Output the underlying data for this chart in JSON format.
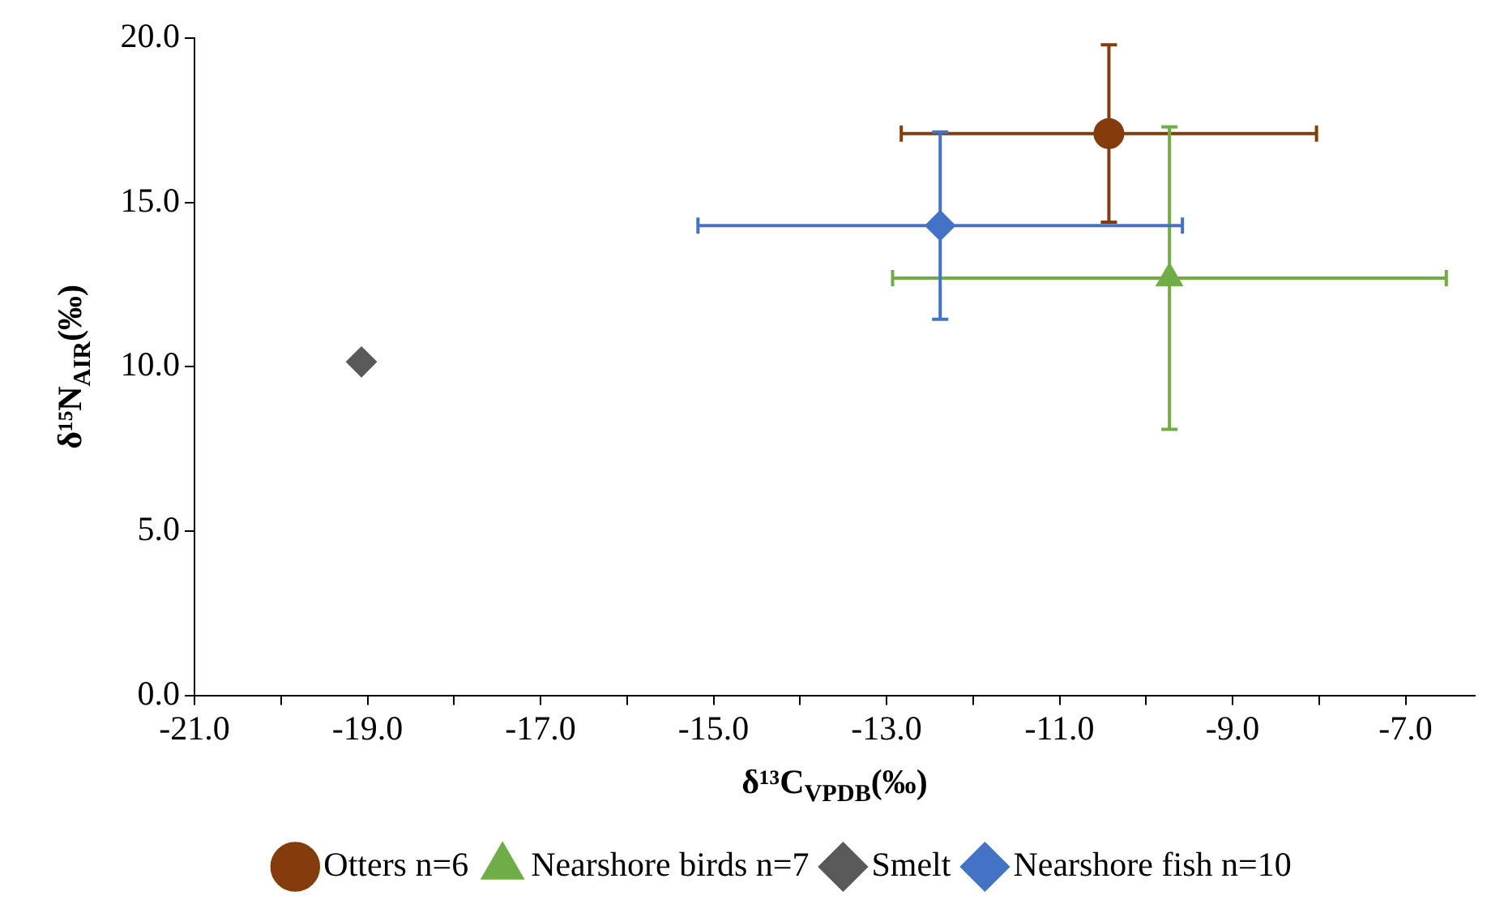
{
  "chart_data": {
    "type": "scatter",
    "xlabel": "δ¹³C$_{VPDB}$(‰)",
    "ylabel": "δ¹⁵N$_{AIR}$(‰)",
    "xlim": [
      -21,
      -6.2
    ],
    "xticks": [
      {
        "value": -21,
        "label": "-21.0"
      },
      {
        "value": -20,
        "label": null
      },
      {
        "value": -19,
        "label": "-19.0"
      },
      {
        "value": -18,
        "label": null
      },
      {
        "value": -17,
        "label": "-17.0"
      },
      {
        "value": -16,
        "label": null
      },
      {
        "value": -15,
        "label": "-15.0"
      },
      {
        "value": -14,
        "label": null
      },
      {
        "value": -13,
        "label": "-13.0"
      },
      {
        "value": -12,
        "label": null
      },
      {
        "value": -11,
        "label": "-11.0"
      },
      {
        "value": -10,
        "label": null
      },
      {
        "value": -9,
        "label": "-9.0"
      },
      {
        "value": -8,
        "label": null
      },
      {
        "value": -7,
        "label": "-7.0"
      }
    ],
    "ylim": [
      0,
      20
    ],
    "yticks": [
      {
        "value": 0,
        "label": "0.0"
      },
      {
        "value": 5,
        "label": "5.0"
      },
      {
        "value": 10,
        "label": "10.0"
      },
      {
        "value": 15,
        "label": "15.0"
      },
      {
        "value": 20,
        "label": "20.0"
      }
    ],
    "grid": false,
    "legend": "bottom",
    "series": [
      {
        "name": "Otters n=6",
        "color": "#843c0c",
        "marker": "circle",
        "x": [
          -10.43
        ],
        "values": [
          17.1
        ],
        "errors": [
          2.7
        ],
        "xerrors": [
          2.4
        ]
      },
      {
        "name": "Nearshore birds n=7",
        "color": "#70ad47",
        "marker": "triangle",
        "x": [
          -9.73
        ],
        "values": [
          12.7
        ],
        "errors": [
          4.6
        ],
        "xerrors": [
          3.2
        ]
      },
      {
        "name": "Smelt",
        "color": "#595959",
        "marker": "diamond",
        "x": [
          -19.07
        ],
        "values": [
          10.15
        ]
      },
      {
        "name": "Nearshore fish n=10",
        "color": "#4472c4",
        "marker": "diamond",
        "x": [
          -12.38
        ],
        "values": [
          14.3
        ],
        "errors": [
          2.85
        ],
        "xerrors": [
          2.8
        ]
      }
    ]
  }
}
